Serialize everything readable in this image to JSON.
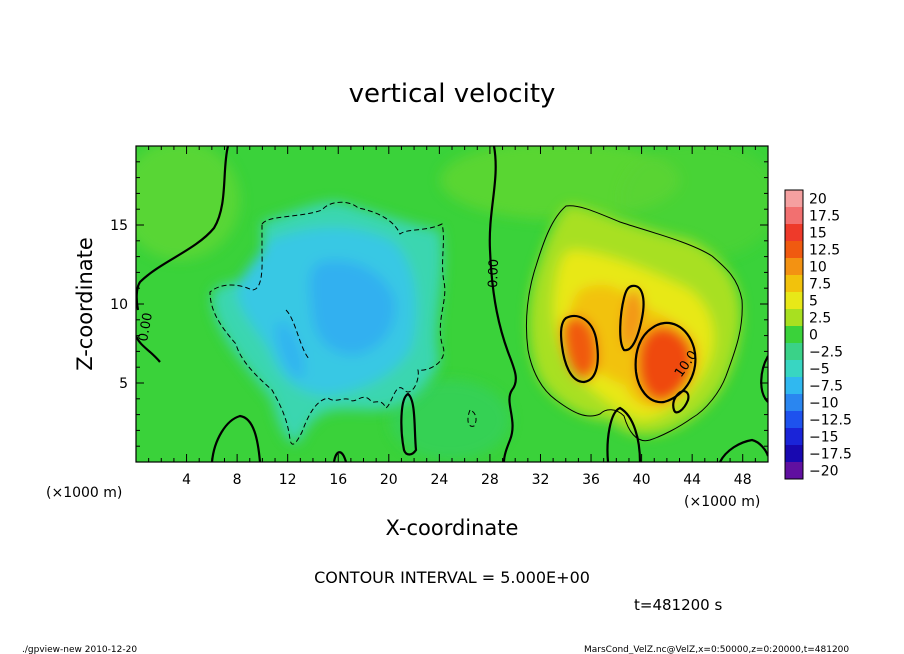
{
  "chart_data": {
    "type": "heatmap",
    "title": "vertical velocity",
    "xlabel": "X-coordinate",
    "ylabel": "Z-coordinate",
    "x_unit": "(×1000 m)",
    "y_unit": "(×1000 m)",
    "xlim": [
      0,
      50
    ],
    "ylim": [
      0,
      20
    ],
    "x_ticks": [
      4,
      8,
      12,
      16,
      20,
      24,
      28,
      32,
      36,
      40,
      44,
      48
    ],
    "y_ticks": [
      5,
      10,
      15
    ],
    "colorbar": {
      "labels": [
        "20",
        "17.5",
        "15",
        "12.5",
        "10",
        "7.5",
        "5",
        "2.5",
        "0",
        "−2.5",
        "−5",
        "−7.5",
        "−10",
        "−12.5",
        "−15",
        "−17.5",
        "−20"
      ],
      "colors": [
        "#f5a0a0",
        "#f27070",
        "#ee3a2a",
        "#f05a10",
        "#f39212",
        "#f2c20c",
        "#e8e818",
        "#a8e020",
        "#3ad23a",
        "#3ad288",
        "#38d6c2",
        "#30b8f0",
        "#2a86f0",
        "#1e52ee",
        "#1a24d8",
        "#1808b0",
        "#6010a0"
      ]
    },
    "contour_labels": [
      "0.00",
      "0.00",
      "10.0"
    ],
    "contour_interval_text": "CONTOUR INTERVAL = 5.000E+00",
    "time_text": "t=481200 s",
    "grid": false
  },
  "footer": {
    "left": "./gpview-new  2010-12-20",
    "right": "MarsCond_VelZ.nc@VelZ,x=0:50000,z=0:20000,t=481200"
  },
  "colors": {
    "background_field": "#3ad23a",
    "updraft_peak": "#f05a10",
    "downdraft_peak": "#30b8f0"
  }
}
